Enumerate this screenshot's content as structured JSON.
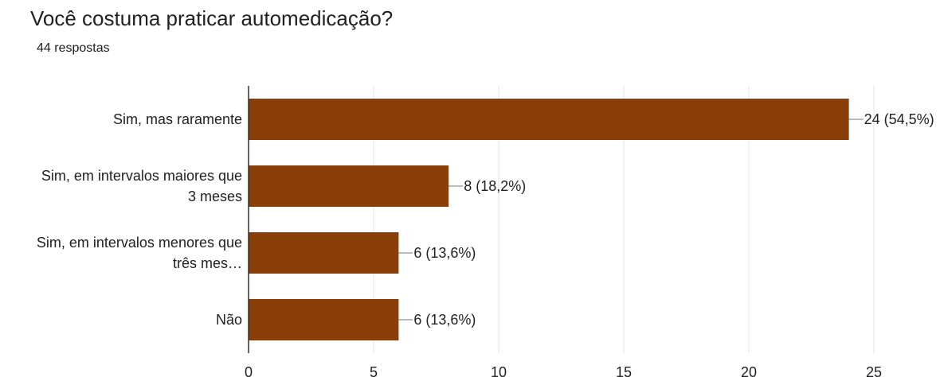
{
  "title": "Você costuma praticar automedicação?",
  "subtitle": "44 respostas",
  "chart_data": {
    "type": "bar",
    "orientation": "horizontal",
    "title": "Você costuma praticar automedicação?",
    "categories": [
      [
        "Sim, mas raramente"
      ],
      [
        "Sim, em intervalos maiores que",
        "3 meses"
      ],
      [
        "Sim, em intervalos menores que",
        "três mes…"
      ],
      [
        "Não"
      ]
    ],
    "values": [
      24,
      8,
      6,
      6
    ],
    "value_labels": [
      "24 (54,5%)",
      "8 (18,2%)",
      "6 (13,6%)",
      "6 (13,6%)"
    ],
    "xlim": [
      0,
      25
    ],
    "xticks": [
      0,
      5,
      10,
      15,
      20,
      25
    ],
    "bar_color": "#8a3e07",
    "grid": true
  }
}
